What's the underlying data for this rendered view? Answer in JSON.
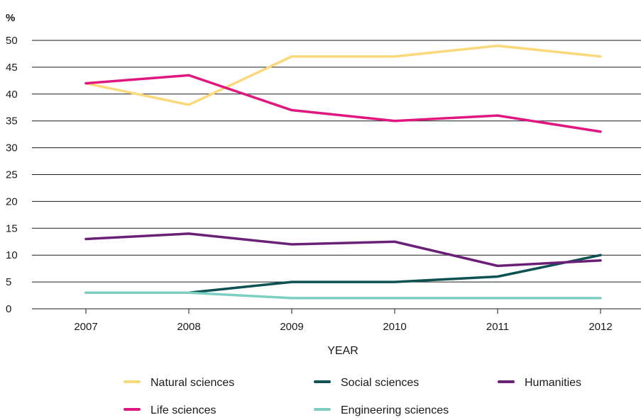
{
  "chart_data": {
    "type": "line",
    "title": "",
    "xlabel": "YEAR",
    "ylabel": "%",
    "x": [
      "2007",
      "2008",
      "2009",
      "2010",
      "2011",
      "2012"
    ],
    "ylim": [
      0,
      50
    ],
    "yticks": [
      0,
      5,
      10,
      15,
      20,
      25,
      30,
      35,
      40,
      45,
      50
    ],
    "grid": "horizontal",
    "legend_position": "bottom",
    "series": [
      {
        "name": "Natural sciences",
        "color": "#FAD97A",
        "values": [
          42,
          38,
          47,
          47,
          49,
          47
        ]
      },
      {
        "name": "Life sciences",
        "color": "#E0177F",
        "values": [
          42,
          43.5,
          37,
          35,
          36,
          33
        ]
      },
      {
        "name": "Social sciences",
        "color": "#0D5153",
        "values": [
          3,
          3,
          5,
          5,
          6,
          10
        ]
      },
      {
        "name": "Engineering sciences",
        "color": "#7DCFC4",
        "values": [
          3,
          3,
          2,
          2,
          2,
          2
        ]
      },
      {
        "name": "Humanities",
        "color": "#6B2077",
        "values": [
          13,
          14,
          12,
          12.5,
          8,
          9
        ]
      }
    ]
  }
}
